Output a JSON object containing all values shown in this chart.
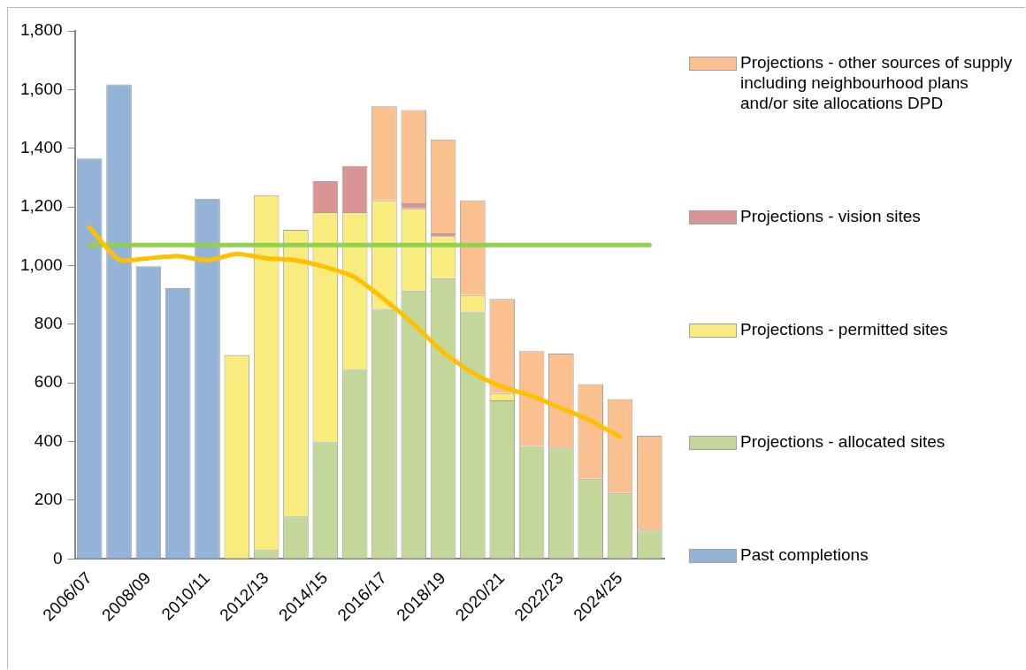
{
  "chart_data": {
    "type": "bar",
    "stacked": true,
    "categories": [
      "2006/07",
      null,
      "2008/09",
      null,
      "2010/11",
      null,
      "2012/13",
      null,
      "2014/15",
      null,
      "2016/17",
      null,
      "2018/19",
      null,
      "2020/21",
      null,
      "2022/23",
      null,
      "2024/25",
      null
    ],
    "series": [
      {
        "name": "Past completions",
        "color": "#95b3d7",
        "values": [
          1365,
          1618,
          998,
          923,
          1228,
          null,
          null,
          null,
          null,
          null,
          null,
          null,
          null,
          null,
          null,
          null,
          null,
          null,
          null,
          null
        ]
      },
      {
        "name": "Projections - allocated sites",
        "color": "#c4d79b",
        "values": [
          null,
          null,
          null,
          null,
          null,
          0,
          30,
          145,
          398,
          645,
          852,
          915,
          957,
          843,
          540,
          385,
          380,
          273,
          225,
          100
        ]
      },
      {
        "name": "Projections - permitted sites",
        "color": "#f7ec7d",
        "values": [
          null,
          null,
          null,
          null,
          null,
          695,
          1210,
          977,
          784,
          537,
          370,
          280,
          143,
          57,
          25,
          null,
          null,
          null,
          null,
          null
        ]
      },
      {
        "name": "Projections - vision sites",
        "color": "#d99594",
        "values": [
          null,
          null,
          null,
          null,
          null,
          null,
          null,
          null,
          106,
          158,
          null,
          17,
          10,
          null,
          null,
          null,
          null,
          null,
          null,
          null
        ]
      },
      {
        "name": "Projections - other sources of supply including neighbourhood plans and/or site allocations DPD",
        "color": "#fac090",
        "values": [
          null,
          null,
          null,
          null,
          null,
          null,
          null,
          null,
          null,
          null,
          321,
          318,
          320,
          322,
          321,
          323,
          320,
          323,
          320,
          320
        ]
      },
      {
        "type": "line",
        "color": "#ffc000",
        "values": [
          1130,
          1020,
          1025,
          1032,
          1018,
          1040,
          1025,
          1018,
          995,
          960,
          885,
          800,
          705,
          634,
          586,
          556,
          514,
          472,
          415,
          null
        ]
      },
      {
        "type": "line",
        "color": "#92d050",
        "values": [
          1070,
          1070,
          1070,
          1070,
          1070,
          1070,
          1070,
          1070,
          1070,
          1070,
          1070,
          1070,
          1070,
          1070,
          1070,
          1070,
          1070,
          1070,
          1070,
          1070
        ]
      }
    ],
    "ylim": [
      0,
      1800
    ],
    "yticks": [
      0,
      {
        "value": 200,
        "label": "200"
      },
      {
        "value": 400,
        "label": "400"
      },
      {
        "value": 600,
        "label": "600"
      },
      {
        "value": 800,
        "label": "800"
      },
      {
        "value": 1000,
        "label": "1,000"
      },
      {
        "value": 1200,
        "label": "1,200"
      },
      {
        "value": 1400,
        "label": "1,400"
      },
      {
        "value": 1600,
        "label": "1,600"
      },
      {
        "value": 1800,
        "label": "1,800"
      }
    ],
    "grid": false,
    "legend": "right",
    "marker": "none",
    "line_style": "solid"
  }
}
